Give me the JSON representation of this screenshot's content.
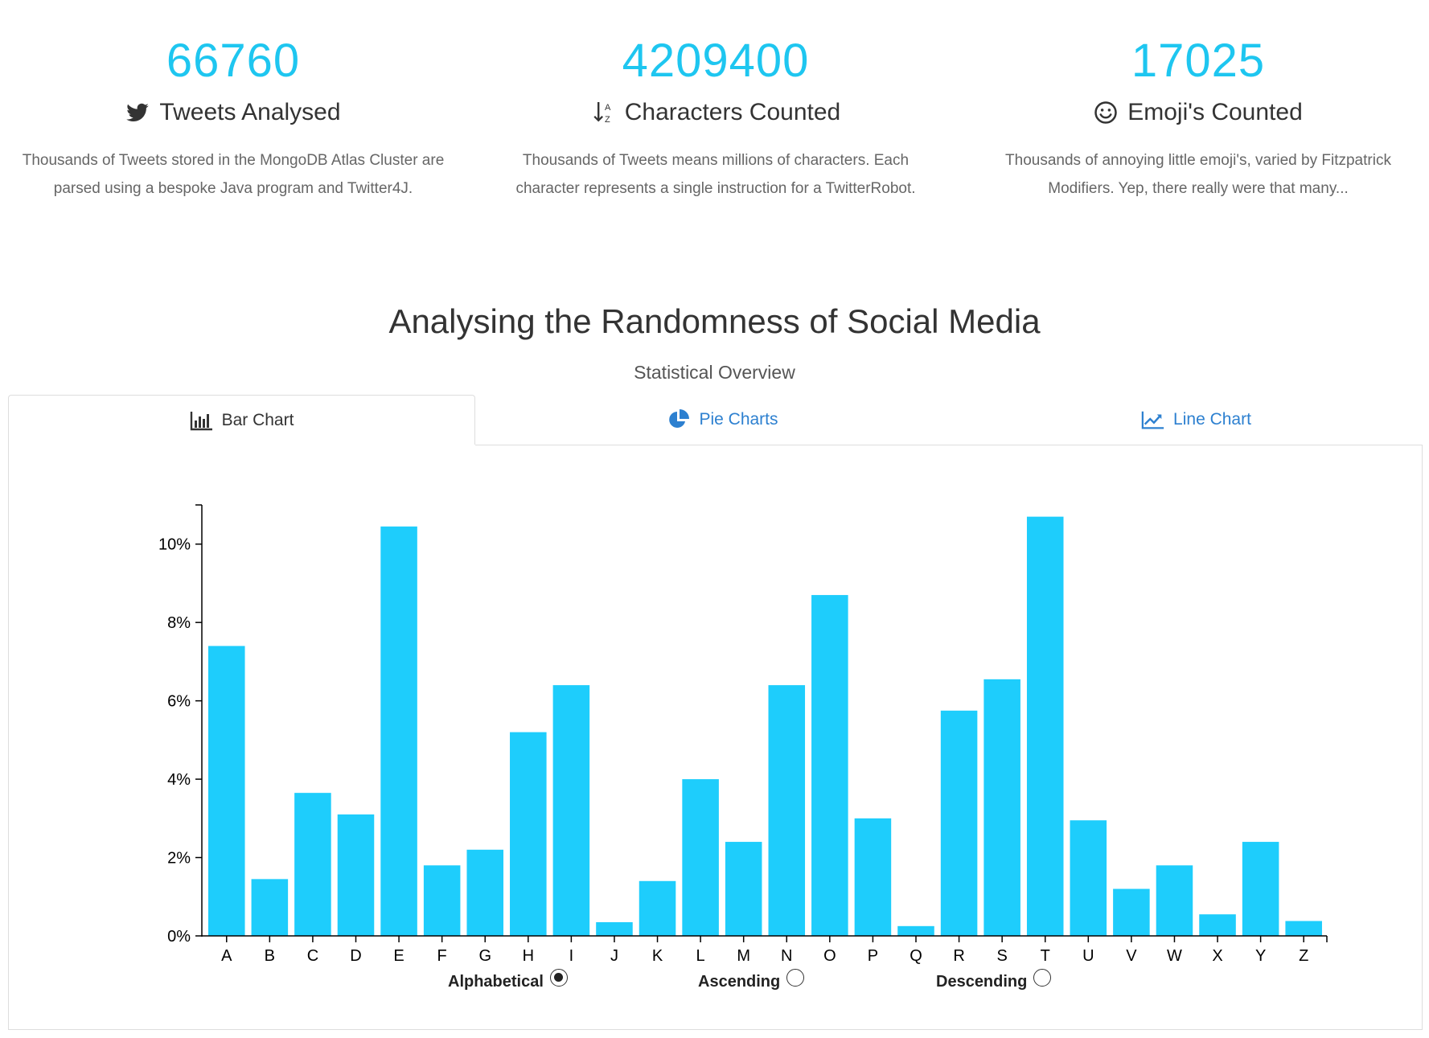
{
  "stats": [
    {
      "number": "66760",
      "label": "Tweets Analysed",
      "icon": "twitter-icon",
      "description": "Thousands of Tweets stored in the MongoDB Atlas Cluster are parsed using a bespoke Java program and Twitter4J."
    },
    {
      "number": "4209400",
      "label": "Characters Counted",
      "icon": "sort-alpha-icon",
      "description": "Thousands of Tweets means millions of characters. Each character represents a single instruction for a TwitterRobot."
    },
    {
      "number": "17025",
      "label": "Emoji's Counted",
      "icon": "smile-icon",
      "description": "Thousands of annoying little emoji's, varied by Fitzpatrick Modifiers. Yep, there really were that many..."
    }
  ],
  "section": {
    "title": "Analysing the Randomness of Social Media",
    "subtitle": "Statistical Overview"
  },
  "tabs": [
    {
      "label": "Bar Chart",
      "icon": "bar-chart-icon",
      "active": true
    },
    {
      "label": "Pie Charts",
      "icon": "pie-chart-icon",
      "active": false
    },
    {
      "label": "Line Chart",
      "icon": "line-chart-icon",
      "active": false
    }
  ],
  "sort_options": [
    {
      "label": "Alphabetical",
      "checked": true
    },
    {
      "label": "Ascending",
      "checked": false
    },
    {
      "label": "Descending",
      "checked": false
    }
  ],
  "colors": {
    "accent": "#1ec6f0",
    "bar": "#1ecdfc",
    "link": "#2d80d0"
  },
  "chart_data": {
    "type": "bar",
    "title": "",
    "xlabel": "",
    "ylabel": "",
    "categories": [
      "A",
      "B",
      "C",
      "D",
      "E",
      "F",
      "G",
      "H",
      "I",
      "J",
      "K",
      "L",
      "M",
      "N",
      "O",
      "P",
      "Q",
      "R",
      "S",
      "T",
      "U",
      "V",
      "W",
      "X",
      "Y",
      "Z"
    ],
    "values": [
      7.4,
      1.45,
      3.65,
      3.1,
      10.45,
      1.8,
      2.2,
      5.2,
      6.4,
      0.35,
      1.4,
      4.0,
      2.4,
      6.4,
      8.7,
      3.0,
      0.25,
      5.75,
      6.55,
      10.7,
      2.95,
      1.2,
      1.8,
      0.55,
      2.4,
      0.38
    ],
    "ylim": [
      0,
      11
    ],
    "yticks": [
      0,
      2,
      4,
      6,
      8,
      10
    ],
    "ytick_labels": [
      "0%",
      "2%",
      "4%",
      "6%",
      "8%",
      "10%"
    ],
    "grid": false,
    "legend": "none"
  }
}
